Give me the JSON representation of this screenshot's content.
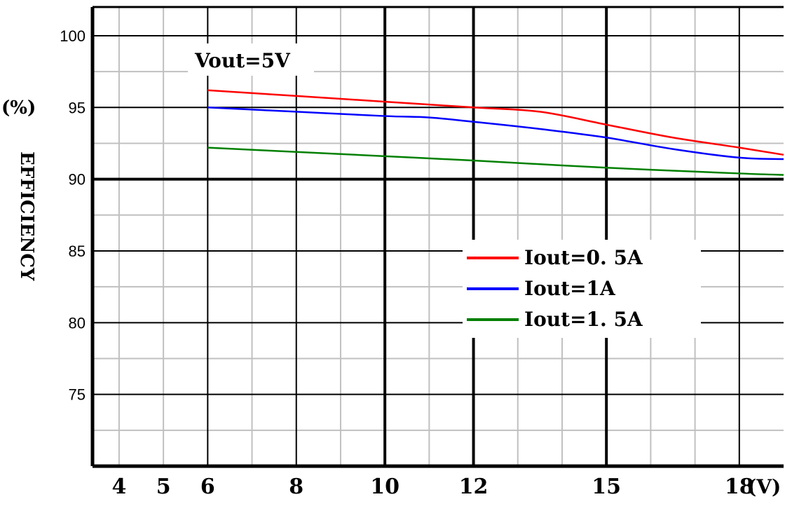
{
  "chart_data": {
    "type": "line",
    "title": "",
    "annotation": "Vout=5V",
    "y_unit_label": "(%)",
    "ylabel": "EFFICIENCY",
    "x_unit_label": "(V)",
    "x_tick_labels": [
      "4",
      "5",
      "6",
      "8",
      "10",
      "12",
      "15",
      "18"
    ],
    "x_tick_values": [
      4,
      5,
      6,
      8,
      10,
      12,
      15,
      18
    ],
    "y_tick_labels": [
      "100",
      "95",
      "90",
      "85",
      "80",
      "75"
    ],
    "y_tick_values": [
      100,
      95,
      90,
      85,
      80,
      75
    ],
    "xlim": [
      3.4,
      19
    ],
    "ylim": [
      70,
      102
    ],
    "grid": true,
    "legend_position": "center-right",
    "series": [
      {
        "name": "Iout=0. 5A",
        "color": "#ff0000",
        "x": [
          6,
          8,
          10,
          12,
          13.5,
          15,
          16.5,
          18,
          19
        ],
        "y": [
          96.2,
          95.8,
          95.4,
          95.0,
          94.7,
          93.8,
          92.9,
          92.2,
          91.7
        ]
      },
      {
        "name": "Iout=1A",
        "color": "#0000ff",
        "x": [
          6,
          8,
          10,
          11,
          12,
          13.5,
          15,
          16.5,
          18,
          19
        ],
        "y": [
          95.0,
          94.7,
          94.4,
          94.3,
          94.0,
          93.5,
          92.9,
          92.1,
          91.5,
          91.4
        ]
      },
      {
        "name": "Iout=1. 5A",
        "color": "#008000",
        "x": [
          6,
          8,
          10,
          12,
          15,
          18,
          19
        ],
        "y": [
          92.2,
          91.9,
          91.6,
          91.3,
          90.8,
          90.4,
          90.3
        ]
      }
    ]
  }
}
